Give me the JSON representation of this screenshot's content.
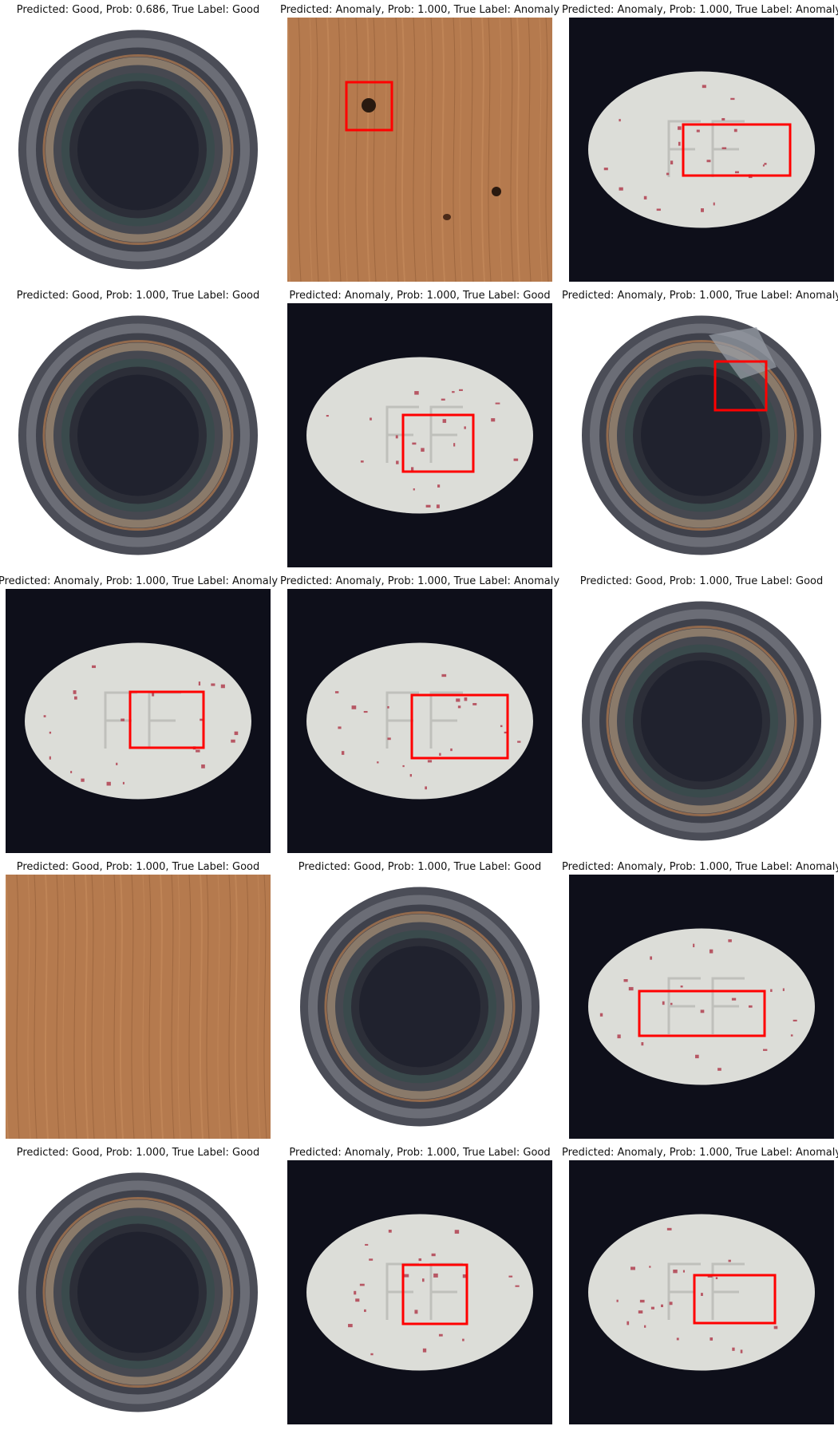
{
  "panels": [
    {
      "caption": "Predicted: Good, Prob: 0.686, True Label: Good",
      "subject": "bottle",
      "has_box": false
    },
    {
      "caption": "Predicted: Anomaly, Prob: 1.000, True Label: Anomaly",
      "subject": "wood",
      "has_box": true
    },
    {
      "caption": "Predicted: Anomaly, Prob: 1.000, True Label: Anomaly",
      "subject": "pill",
      "has_box": true
    },
    {
      "caption": "Predicted: Good, Prob: 1.000, True Label: Good",
      "subject": "bottle",
      "has_box": false
    },
    {
      "caption": "Predicted: Anomaly, Prob: 1.000, True Label: Good",
      "subject": "pill",
      "has_box": true
    },
    {
      "caption": "Predicted: Anomaly, Prob: 1.000, True Label: Anomaly",
      "subject": "bottle",
      "has_box": true
    },
    {
      "caption": "Predicted: Anomaly, Prob: 1.000, True Label: Anomaly",
      "subject": "pill",
      "has_box": true
    },
    {
      "caption": "Predicted: Anomaly, Prob: 1.000, True Label: Anomaly",
      "subject": "pill",
      "has_box": true
    },
    {
      "caption": "Predicted: Good, Prob: 1.000, True Label: Good",
      "subject": "bottle",
      "has_box": false
    },
    {
      "caption": "Predicted: Good, Prob: 1.000, True Label: Good",
      "subject": "wood",
      "has_box": false
    },
    {
      "caption": "Predicted: Good, Prob: 1.000, True Label: Good",
      "subject": "bottle",
      "has_box": false
    },
    {
      "caption": "Predicted: Anomaly, Prob: 1.000, True Label: Anomaly",
      "subject": "pill",
      "has_box": true
    },
    {
      "caption": "Predicted: Good, Prob: 1.000, True Label: Good",
      "subject": "bottle",
      "has_box": false
    },
    {
      "caption": "Predicted: Anomaly, Prob: 1.000, True Label: Good",
      "subject": "pill",
      "has_box": true
    },
    {
      "caption": "Predicted: Anomaly, Prob: 1.000, True Label: Anomaly",
      "subject": "pill",
      "has_box": true
    }
  ],
  "colors": {
    "box": "#ff0000",
    "pill_bg": "#0e0f1a",
    "pill": "#dcddd8",
    "wood": "#b57a4e",
    "bottle_ring": "#4a4c56",
    "bottle_center": "#20222e"
  }
}
